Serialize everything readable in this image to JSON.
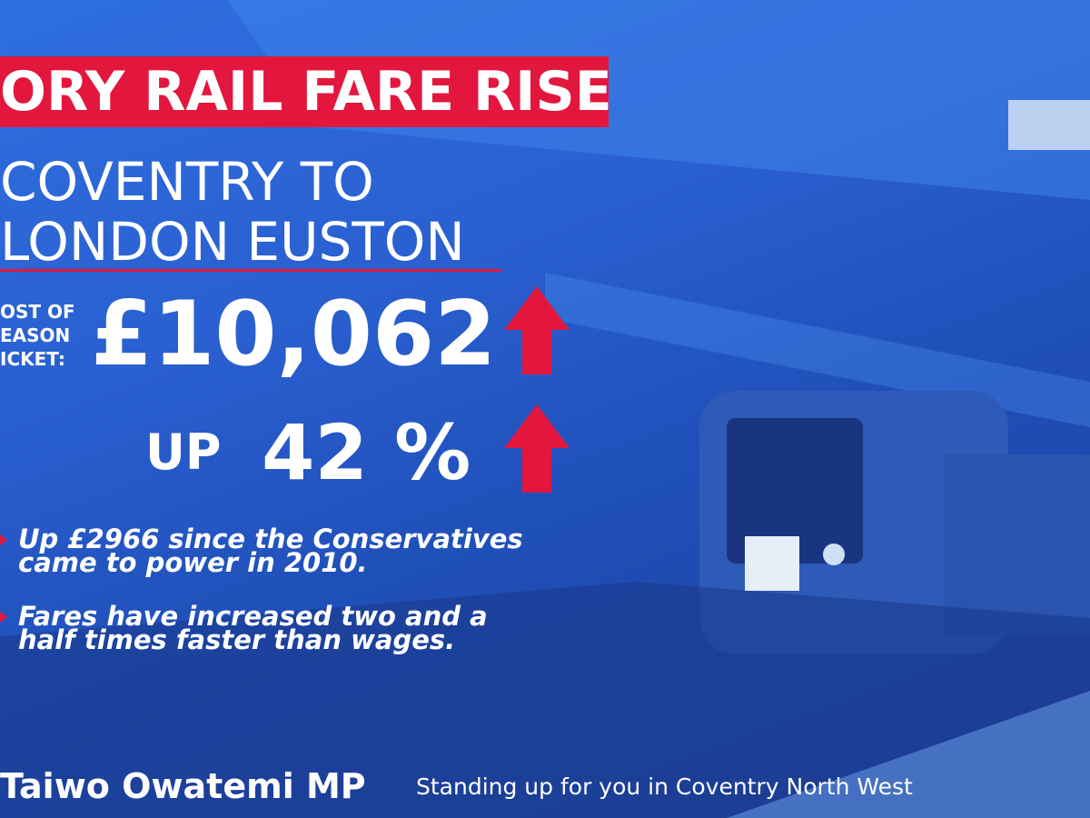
{
  "header": {
    "title": "ORY RAIL FARE RISE"
  },
  "route": {
    "line1": "COVENTRY TO",
    "line2": "LONDON EUSTON"
  },
  "cost": {
    "label": [
      "OST OF",
      "EASON",
      "ICKET:"
    ],
    "price": "£10,062"
  },
  "increase": {
    "prefix": "UP",
    "percent": "42 %"
  },
  "bullets": [
    [
      "Up £2966 since the Conservatives",
      "came to power in 2010."
    ],
    [
      "Fares have increased two and a",
      "half times faster than wages."
    ]
  ],
  "footer": {
    "name": "Taiwo Owatemi MP",
    "tagline": "Standing up for you in Coventry North West"
  }
}
